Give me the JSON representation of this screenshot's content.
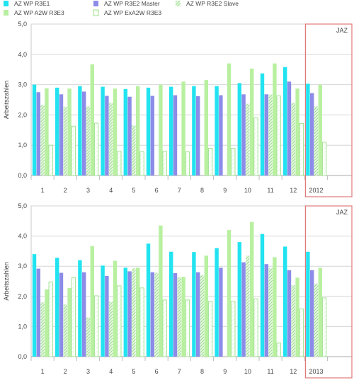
{
  "legend": [
    {
      "name": "AZ WP R3E1",
      "color": "#22e3f0",
      "pattern": "solid"
    },
    {
      "name": "AZ WP R3E2 Master",
      "color": "#8c8ce8",
      "pattern": "solid"
    },
    {
      "name": "AZ WP R3E2 Slave",
      "color": "#7cd86c",
      "pattern": "hatch"
    },
    {
      "name": "AZ WP A2W R3E3",
      "color": "#b8f0a0",
      "pattern": "solid"
    },
    {
      "name": "AZ WP ExA2W R3E3",
      "color": "#9be08a",
      "pattern": "outline"
    }
  ],
  "chart_data": [
    {
      "type": "bar",
      "ylabel": "Arbeitszahlen",
      "ylim": [
        0,
        5
      ],
      "yticks": [
        "0,0",
        "1,0",
        "2,0",
        "3,0",
        "4,0",
        "5,0"
      ],
      "categories": [
        "1",
        "2",
        "3",
        "4",
        "5",
        "6",
        "7",
        "8",
        "9",
        "10",
        "11",
        "12",
        "2012"
      ],
      "annotation": "JAZ",
      "grid": true,
      "series": [
        {
          "name": "AZ WP R3E1",
          "values": [
            3.0,
            2.9,
            2.95,
            2.93,
            2.85,
            2.9,
            2.93,
            2.95,
            2.95,
            3.05,
            3.37,
            3.58,
            3.03
          ]
        },
        {
          "name": "AZ WP R3E2 Master",
          "values": [
            2.75,
            2.68,
            2.77,
            2.63,
            2.6,
            2.63,
            2.65,
            2.62,
            2.65,
            2.68,
            2.68,
            3.1,
            2.72
          ]
        },
        {
          "name": "AZ WP R3E2 Slave",
          "values": [
            2.33,
            2.27,
            2.28,
            2.4,
            1.65,
            0,
            0,
            0,
            0,
            2.37,
            2.67,
            2.4,
            2.28
          ]
        },
        {
          "name": "AZ WP A2W R3E3",
          "values": [
            2.88,
            2.87,
            3.67,
            2.87,
            2.95,
            3.0,
            3.1,
            3.15,
            3.7,
            3.53,
            3.7,
            2.87,
            3.0
          ]
        },
        {
          "name": "AZ WP ExA2W R3E3",
          "values": [
            1.0,
            1.63,
            1.73,
            0.8,
            0.78,
            0.8,
            0.78,
            0.9,
            0.9,
            1.9,
            2.63,
            1.72,
            1.1
          ]
        }
      ]
    },
    {
      "type": "bar",
      "ylabel": "Arbeitszahlen",
      "ylim": [
        0,
        5
      ],
      "yticks": [
        "0,0",
        "1,0",
        "2,0",
        "3,0",
        "4,0",
        "5,0"
      ],
      "categories": [
        "1",
        "2",
        "3",
        "4",
        "5",
        "6",
        "7",
        "8",
        "9",
        "10",
        "11",
        "12",
        "2013"
      ],
      "annotation": "JAZ",
      "grid": true,
      "series": [
        {
          "name": "AZ WP R3E1",
          "values": [
            3.4,
            3.28,
            3.2,
            3.02,
            2.95,
            3.75,
            3.48,
            3.47,
            3.6,
            3.8,
            4.07,
            3.65,
            3.48
          ]
        },
        {
          "name": "AZ WP R3E2 Master",
          "values": [
            2.92,
            2.78,
            2.8,
            2.68,
            2.83,
            2.8,
            2.77,
            2.8,
            2.95,
            3.13,
            3.07,
            2.87,
            2.87
          ]
        },
        {
          "name": "AZ WP R3E2 Slave",
          "values": [
            1.8,
            1.73,
            1.3,
            1.82,
            2.93,
            2.78,
            2.63,
            2.7,
            0,
            3.35,
            2.93,
            2.37,
            2.42
          ]
        },
        {
          "name": "AZ WP A2W R3E3",
          "values": [
            2.23,
            2.28,
            3.67,
            3.18,
            2.95,
            4.35,
            2.65,
            3.35,
            4.2,
            4.47,
            3.3,
            2.62,
            2.95
          ]
        },
        {
          "name": "AZ WP ExA2W R3E3",
          "values": [
            2.48,
            2.62,
            2.02,
            2.35,
            2.28,
            1.88,
            1.88,
            1.83,
            1.83,
            1.92,
            0.45,
            1.58,
            1.95
          ]
        }
      ]
    }
  ]
}
